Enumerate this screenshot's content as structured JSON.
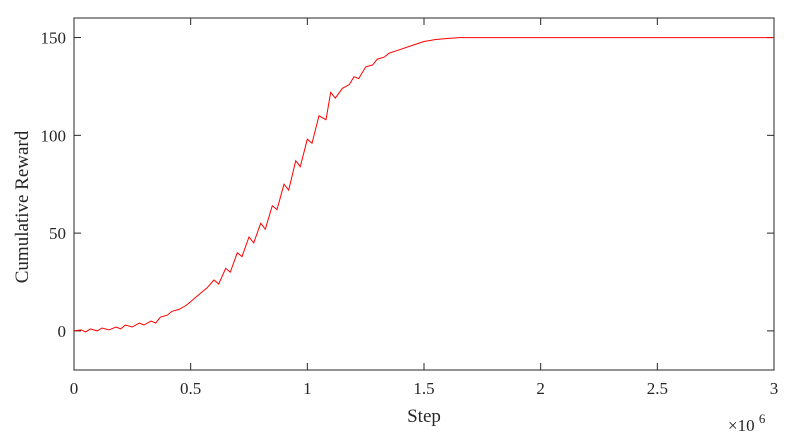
{
  "chart_data": {
    "type": "line",
    "title": "",
    "xlabel": "Step",
    "ylabel": "Cumulative Reward",
    "x_exponent_label": "×10",
    "x_exponent_power": "6",
    "xlim": [
      0,
      3
    ],
    "ylim": [
      -20,
      160
    ],
    "xticks": [
      0,
      0.5,
      1,
      1.5,
      2,
      2.5,
      3
    ],
    "xtick_labels": [
      "0",
      "0.5",
      "1",
      "1.5",
      "2",
      "2.5",
      "3"
    ],
    "yticks": [
      0,
      50,
      100,
      150
    ],
    "ytick_labels": [
      "0",
      "50",
      "100",
      "150"
    ],
    "grid": false,
    "legend": "none",
    "colors": {
      "line": "#ff0000",
      "axes": "#262626"
    },
    "series": [
      {
        "x": [
          0,
          0.03,
          0.05,
          0.07,
          0.1,
          0.12,
          0.15,
          0.18,
          0.2,
          0.22,
          0.25,
          0.28,
          0.3,
          0.33,
          0.35,
          0.37,
          0.4,
          0.42,
          0.45,
          0.48,
          0.5,
          0.52,
          0.55,
          0.57,
          0.6,
          0.62,
          0.65,
          0.67,
          0.7,
          0.72,
          0.75,
          0.77,
          0.8,
          0.82,
          0.85,
          0.87,
          0.9,
          0.92,
          0.95,
          0.97,
          1.0,
          1.02,
          1.05,
          1.08,
          1.1,
          1.12,
          1.15,
          1.18,
          1.2,
          1.22,
          1.25,
          1.28,
          1.3,
          1.33,
          1.35,
          1.4,
          1.45,
          1.5,
          1.55,
          1.6,
          1.65,
          1.7,
          1.8,
          2.0,
          2.2,
          2.5,
          2.8,
          3.0
        ],
        "y": [
          0,
          0.5,
          -0.5,
          1,
          0,
          1.5,
          0.5,
          2,
          1,
          3,
          2,
          4,
          3,
          5,
          4,
          7,
          8,
          10,
          11,
          13,
          15,
          17,
          20,
          22,
          26,
          24,
          32,
          30,
          40,
          38,
          48,
          45,
          55,
          52,
          64,
          62,
          75,
          72,
          87,
          84,
          98,
          96,
          110,
          108,
          122,
          119,
          124,
          126,
          130,
          129,
          135,
          136,
          139,
          140,
          142,
          144,
          146,
          148,
          149,
          149.5,
          150,
          150,
          150,
          150,
          150,
          150,
          150,
          150
        ]
      }
    ]
  }
}
